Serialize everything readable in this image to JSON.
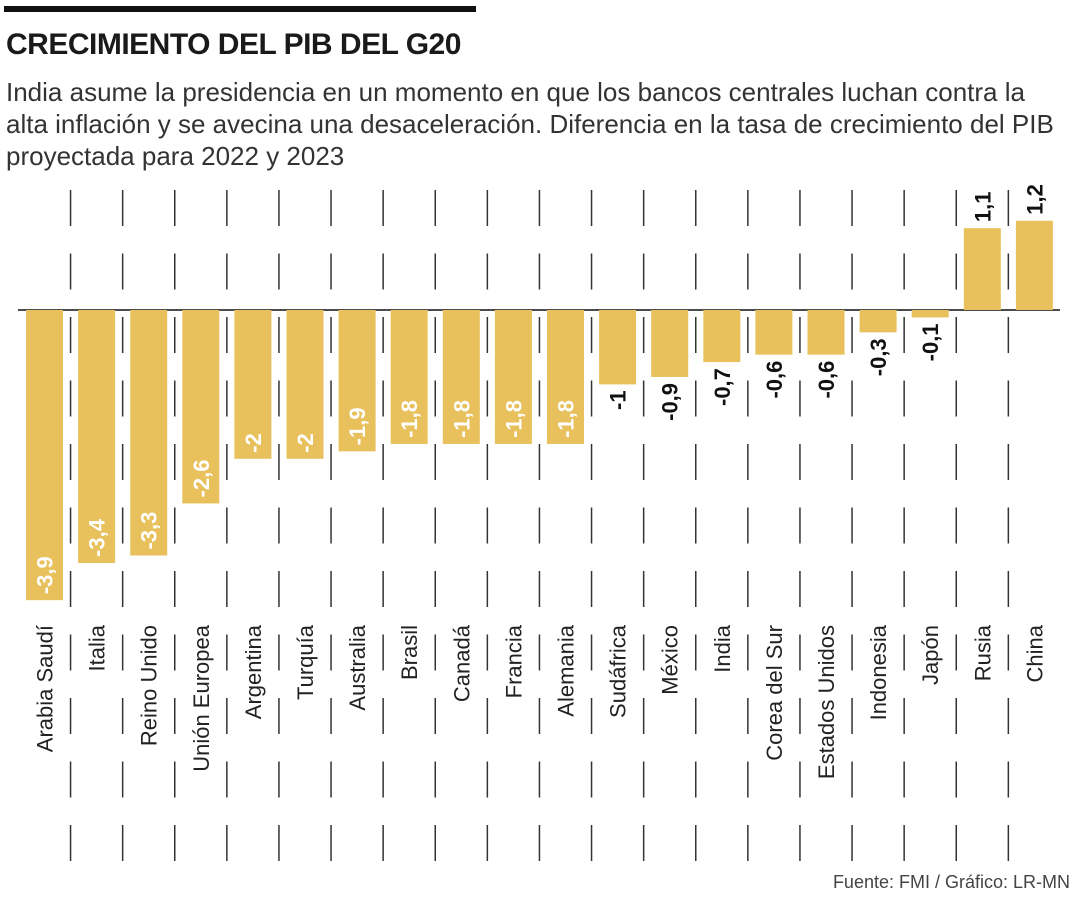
{
  "title": "CRECIMIENTO DEL PIB DEL G20",
  "subtitle": "India asume la presidencia en un momento en que los bancos centrales luchan contra la alta inflación y se avecina una desaceleración. Diferencia en la tasa de crecimiento del PIB proyectada para 2022 y 2023",
  "source": "Fuente: FMI / Gráfico: LR-MN",
  "chart_data": {
    "type": "bar",
    "title": "CRECIMIENTO DEL PIB DEL G20",
    "categories": [
      "Arabia Saudí",
      "Italia",
      "Reino Unido",
      "Unión Europea",
      "Argentina",
      "Turquía",
      "Australia",
      "Brasil",
      "Canadá",
      "Francia",
      "Alemania",
      "Sudáfrica",
      "México",
      "India",
      "Corea del Sur",
      "Estados Unidos",
      "Indonesia",
      "Japón",
      "Rusia",
      "China"
    ],
    "values": [
      -3.9,
      -3.4,
      -3.3,
      -2.6,
      -2,
      -2,
      -1.9,
      -1.8,
      -1.8,
      -1.8,
      -1.8,
      -1,
      -0.9,
      -0.7,
      -0.6,
      -0.6,
      -0.3,
      -0.1,
      1.1,
      1.2
    ],
    "data_labels": [
      "-3,9",
      "-3,4",
      "-3,3",
      "-2,6",
      "-2",
      "-2",
      "-1,9",
      "-1,8",
      "-1,8",
      "-1,8",
      "-1,8",
      "-1",
      "-0,9",
      "-0,7",
      "-0,6",
      "-0,6",
      "-0,3",
      "-0,1",
      "1,1",
      "1,2"
    ],
    "xlabel": "",
    "ylabel": "",
    "ylim": [
      -3.9,
      1.2
    ],
    "grid": "vertical dashed separators",
    "bar_color": "#E8C15C"
  }
}
